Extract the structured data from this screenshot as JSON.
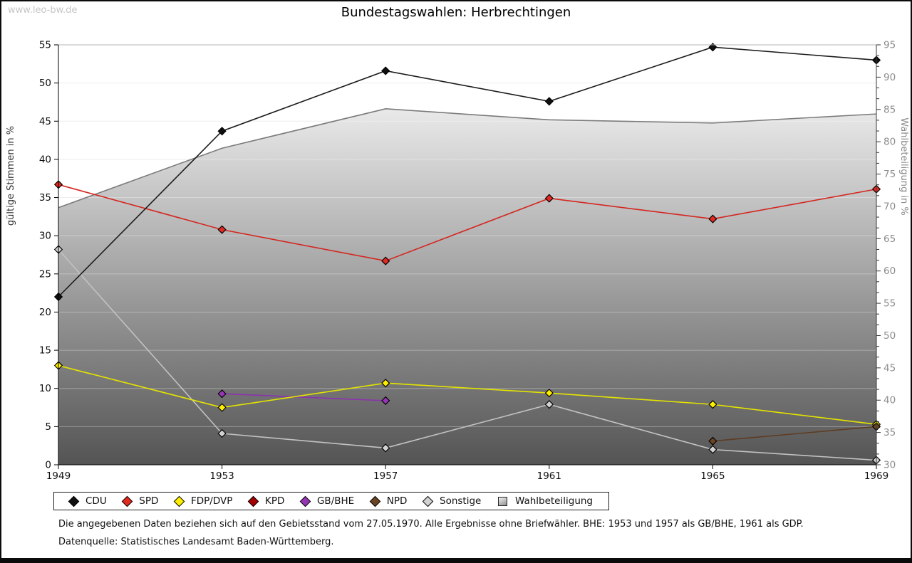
{
  "page": {
    "watermark": "www.leo-bw.de"
  },
  "chart_data": {
    "type": "line",
    "title": "Bundestagswahlen: Herbrechtingen",
    "x": [
      1949,
      1953,
      1957,
      1961,
      1965,
      1969
    ],
    "left_axis": {
      "label": "gültige Stimmen in %",
      "min": 0,
      "max": 55,
      "step": 5
    },
    "right_axis": {
      "label": "Wahlbeteiligung in %",
      "min": 30,
      "max": 95,
      "step": 5
    },
    "grid": "horizontal",
    "legend_position": "bottom",
    "series": [
      {
        "name": "CDU",
        "marker_shape": "diamond",
        "axis": "left",
        "line_color": "#1c1c1c",
        "marker_color": "#101010",
        "values": [
          22.0,
          43.7,
          51.6,
          47.6,
          54.7,
          53.0
        ]
      },
      {
        "name": "SPD",
        "marker_shape": "diamond",
        "axis": "left",
        "line_color": "#d42620",
        "marker_color": "#e02a22",
        "values": [
          36.7,
          30.8,
          26.7,
          34.9,
          32.2,
          36.1
        ]
      },
      {
        "name": "FDP/DVP",
        "marker_shape": "diamond",
        "axis": "left",
        "line_color": "#e4e400",
        "marker_color": "#ffee00",
        "values": [
          13.0,
          7.5,
          10.7,
          9.4,
          7.9,
          5.3
        ]
      },
      {
        "name": "KPD",
        "marker_shape": "diamond",
        "axis": "left",
        "line_color": "#a50000",
        "marker_color": "#a50000",
        "values": [
          null,
          null,
          null,
          null,
          null,
          null
        ]
      },
      {
        "name": "GB/BHE",
        "marker_shape": "diamond",
        "axis": "left",
        "line_color": "#8c32ae",
        "marker_color": "#9536b4",
        "values": [
          null,
          9.3,
          8.4,
          null,
          null,
          null
        ]
      },
      {
        "name": "NPD",
        "marker_shape": "diamond",
        "axis": "left",
        "line_color": "#5e3c22",
        "marker_color": "#6b4423",
        "values": [
          null,
          null,
          null,
          null,
          3.1,
          5.0
        ]
      },
      {
        "name": "Sonstige",
        "marker_shape": "diamond",
        "axis": "left",
        "line_color": "#c2c2c2",
        "marker_color": "#d2d2d2",
        "values": [
          28.2,
          4.1,
          2.2,
          7.9,
          2.0,
          0.6
        ]
      },
      {
        "name": "Wahlbeteiligung",
        "marker_shape": "square",
        "axis": "right",
        "type": "area",
        "line_color": "#7b7b7b",
        "marker_color": "#bdbdbd",
        "values": [
          69.8,
          79.0,
          85.1,
          83.4,
          82.9,
          84.3
        ]
      }
    ]
  },
  "footnotes": {
    "line1": "Die angegebenen Daten beziehen sich auf den Gebietsstand vom 27.05.1970. Alle Ergebnisse ohne Briefwähler. BHE: 1953 und 1957 als GB/BHE, 1961 als GDP.",
    "line2": "Datenquelle: Statistisches Landesamt Baden-Württemberg."
  }
}
